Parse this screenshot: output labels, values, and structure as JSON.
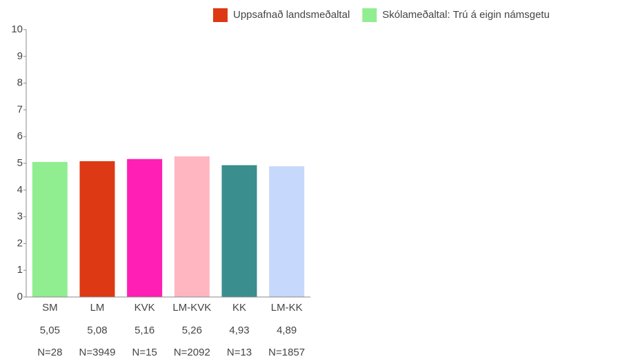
{
  "chart_data": {
    "type": "bar",
    "legend": [
      {
        "name": "Uppsafnað landsmeðaltal",
        "color": "#dd3914"
      },
      {
        "name": "Skólameðaltal: Trú á eigin námsgetu",
        "color": "#90ee90"
      }
    ],
    "categories": [
      "SM",
      "LM",
      "KVK",
      "LM-KVK",
      "KK",
      "LM-KK"
    ],
    "values": [
      5.05,
      5.08,
      5.16,
      5.26,
      4.93,
      4.89
    ],
    "value_labels": [
      "5,05",
      "5,08",
      "5,16",
      "5,26",
      "4,93",
      "4,89"
    ],
    "n_labels": [
      "N=28",
      "N=3949",
      "N=15",
      "N=2092",
      "N=13",
      "N=1857"
    ],
    "colors": [
      "#90ee90",
      "#dd3914",
      "#ff1fb4",
      "#ffb6c1",
      "#3a8e8e",
      "#c6d8fb"
    ],
    "ylim": [
      0,
      10
    ],
    "yticks": [
      0,
      1,
      2,
      3,
      4,
      5,
      6,
      7,
      8,
      9,
      10
    ]
  }
}
